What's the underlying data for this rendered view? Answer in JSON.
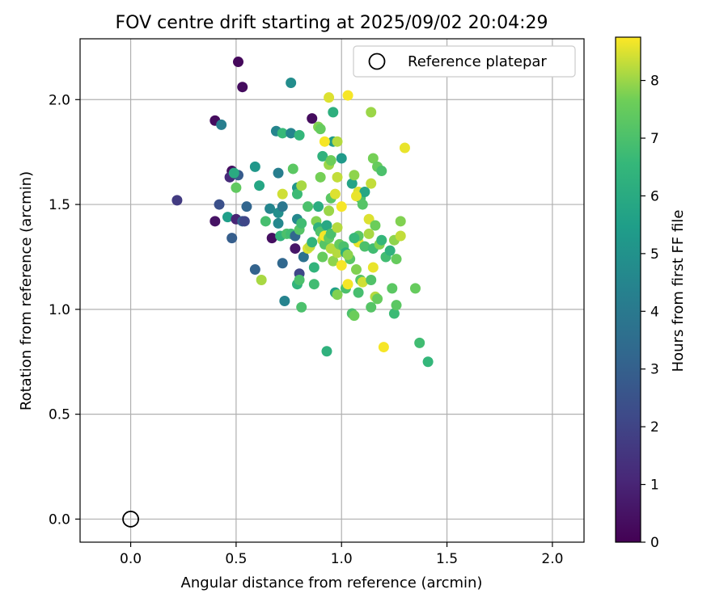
{
  "chart_data": {
    "type": "scatter",
    "title": "FOV centre drift starting at 2025/09/02 20:04:29",
    "xlabel": "Angular distance from reference (arcmin)",
    "ylabel": "Rotation from reference (arcmin)",
    "xlim": [
      -0.24,
      2.15
    ],
    "ylim": [
      -0.11,
      2.29
    ],
    "xticks": [
      "0.0",
      "0.5",
      "1.0",
      "1.5",
      "2.0"
    ],
    "yticks": [
      "0.0",
      "0.5",
      "1.0",
      "1.5",
      "2.0"
    ],
    "grid": true,
    "legend": {
      "location": "top-right",
      "entries": [
        "Reference platepar"
      ]
    },
    "reference_point": {
      "x": 0.0,
      "y": 0.0
    },
    "colorbar": {
      "label": "Hours from first FF file",
      "range": [
        0,
        8.75
      ],
      "ticks": [
        "0",
        "1",
        "2",
        "3",
        "4",
        "5",
        "6",
        "7",
        "8"
      ],
      "colormap": "viridis"
    },
    "points": [
      [
        0.51,
        2.18,
        0.2
      ],
      [
        0.53,
        2.06,
        0.3
      ],
      [
        0.4,
        1.9,
        0.3
      ],
      [
        0.43,
        1.88,
        4.2
      ],
      [
        0.76,
        2.08,
        4.8
      ],
      [
        0.86,
        1.91,
        0.3
      ],
      [
        0.94,
        2.01,
        8.5
      ],
      [
        1.03,
        2.02,
        8.7
      ],
      [
        0.96,
        1.94,
        6.2
      ],
      [
        0.69,
        1.85,
        4.5
      ],
      [
        0.72,
        1.84,
        6.6
      ],
      [
        0.76,
        1.84,
        4.5
      ],
      [
        0.8,
        1.83,
        6.5
      ],
      [
        0.89,
        1.87,
        7.8
      ],
      [
        0.9,
        1.86,
        7.5
      ],
      [
        0.96,
        1.8,
        5.3
      ],
      [
        0.98,
        1.8,
        8.2
      ],
      [
        1.14,
        1.94,
        8.0
      ],
      [
        1.3,
        1.77,
        8.6
      ],
      [
        0.48,
        1.66,
        0.4
      ],
      [
        0.51,
        1.64,
        2.8
      ],
      [
        0.47,
        1.63,
        1.2
      ],
      [
        0.49,
        1.65,
        6.0
      ],
      [
        0.59,
        1.68,
        5.2
      ],
      [
        0.7,
        1.65,
        4.2
      ],
      [
        0.77,
        1.67,
        7.3
      ],
      [
        0.91,
        1.73,
        6.3
      ],
      [
        0.94,
        1.69,
        8.0
      ],
      [
        0.95,
        1.71,
        7.6
      ],
      [
        1.0,
        1.72,
        5.3
      ],
      [
        1.15,
        1.72,
        7.7
      ],
      [
        1.17,
        1.68,
        7.5
      ],
      [
        1.19,
        1.66,
        7.0
      ],
      [
        0.22,
        1.52,
        1.7
      ],
      [
        0.42,
        1.5,
        2.4
      ],
      [
        0.4,
        1.42,
        0.5
      ],
      [
        0.46,
        1.44,
        5.5
      ],
      [
        0.5,
        1.43,
        1.0
      ],
      [
        0.53,
        1.42,
        3.0
      ],
      [
        0.55,
        1.49,
        3.2
      ],
      [
        0.54,
        1.42,
        2.1
      ],
      [
        0.5,
        1.58,
        7.4
      ],
      [
        0.61,
        1.59,
        5.8
      ],
      [
        0.64,
        1.42,
        6.9
      ],
      [
        0.66,
        1.48,
        4.5
      ],
      [
        0.7,
        1.46,
        4.9
      ],
      [
        0.7,
        1.41,
        4.6
      ],
      [
        0.72,
        1.49,
        3.9
      ],
      [
        0.72,
        1.55,
        8.4
      ],
      [
        0.79,
        1.58,
        5.1
      ],
      [
        0.79,
        1.55,
        6.7
      ],
      [
        0.81,
        1.59,
        8.1
      ],
      [
        0.84,
        1.49,
        7.0
      ],
      [
        0.89,
        1.49,
        6.1
      ],
      [
        0.94,
        1.47,
        8.0
      ],
      [
        0.95,
        1.53,
        7.3
      ],
      [
        0.97,
        1.55,
        8.5
      ],
      [
        0.98,
        1.63,
        8.3
      ],
      [
        1.0,
        1.49,
        8.7
      ],
      [
        1.05,
        1.6,
        5.7
      ],
      [
        1.06,
        1.64,
        7.9
      ],
      [
        1.08,
        1.56,
        8.5
      ],
      [
        1.09,
        1.53,
        7.0
      ],
      [
        1.1,
        1.5,
        7.2
      ],
      [
        1.11,
        1.56,
        5.8
      ],
      [
        1.14,
        1.6,
        8.3
      ],
      [
        0.48,
        1.34,
        2.9
      ],
      [
        0.59,
        1.19,
        3.1
      ],
      [
        0.62,
        1.14,
        8.1
      ],
      [
        0.67,
        1.34,
        0.4
      ],
      [
        0.71,
        1.35,
        6.4
      ],
      [
        0.72,
        1.22,
        3.3
      ],
      [
        0.73,
        1.04,
        4.4
      ],
      [
        0.74,
        1.36,
        7.0
      ],
      [
        0.76,
        1.36,
        6.8
      ],
      [
        0.78,
        1.29,
        0.6
      ],
      [
        0.78,
        1.35,
        3.3
      ],
      [
        0.79,
        1.43,
        4.6
      ],
      [
        0.79,
        1.12,
        6.4
      ],
      [
        0.8,
        1.38,
        7.2
      ],
      [
        0.81,
        1.41,
        6.8
      ],
      [
        0.8,
        1.17,
        2.1
      ],
      [
        0.8,
        1.14,
        7.0
      ],
      [
        0.81,
        1.01,
        7.0
      ],
      [
        0.82,
        1.25,
        3.7
      ],
      [
        0.84,
        1.29,
        8.5
      ],
      [
        0.85,
        1.3,
        8.3
      ],
      [
        0.86,
        1.32,
        6.4
      ],
      [
        0.87,
        1.2,
        6.4
      ],
      [
        0.87,
        1.12,
        6.8
      ],
      [
        0.88,
        1.42,
        7.8
      ],
      [
        0.89,
        1.39,
        6.3
      ],
      [
        0.9,
        1.37,
        7.1
      ],
      [
        0.91,
        1.33,
        8.3
      ],
      [
        0.91,
        1.25,
        7.5
      ],
      [
        0.92,
        1.31,
        7.2
      ],
      [
        0.92,
        1.35,
        8.7
      ],
      [
        0.93,
        1.4,
        5.9
      ],
      [
        0.94,
        1.34,
        7.4
      ],
      [
        0.95,
        1.29,
        8.2
      ],
      [
        0.95,
        1.36,
        7.0
      ],
      [
        0.96,
        1.23,
        7.9
      ],
      [
        0.97,
        1.08,
        5.6
      ],
      [
        0.98,
        1.07,
        7.8
      ],
      [
        0.98,
        1.27,
        8.2
      ],
      [
        0.99,
        1.31,
        7.5
      ],
      [
        1.0,
        1.21,
        8.7
      ],
      [
        1.01,
        1.3,
        7.0
      ],
      [
        1.02,
        1.27,
        6.2
      ],
      [
        1.02,
        1.1,
        7.0
      ],
      [
        1.03,
        1.12,
        8.7
      ],
      [
        1.04,
        1.24,
        7.3
      ],
      [
        1.05,
        0.98,
        7.0
      ],
      [
        1.06,
        0.97,
        7.6
      ],
      [
        1.07,
        1.19,
        7.8
      ],
      [
        1.08,
        1.08,
        6.9
      ],
      [
        1.08,
        1.32,
        8.6
      ],
      [
        1.08,
        1.35,
        7.3
      ],
      [
        1.09,
        1.14,
        7.2
      ],
      [
        1.1,
        1.13,
        8.4
      ],
      [
        1.11,
        1.3,
        7.0
      ],
      [
        1.13,
        1.43,
        8.5
      ],
      [
        1.13,
        1.36,
        8.1
      ],
      [
        1.14,
        1.14,
        7.1
      ],
      [
        1.14,
        1.01,
        7.2
      ],
      [
        1.15,
        1.2,
        8.6
      ],
      [
        1.15,
        1.29,
        6.8
      ],
      [
        1.16,
        1.4,
        7.6
      ],
      [
        1.16,
        1.06,
        8.2
      ],
      [
        1.17,
        1.05,
        7.5
      ],
      [
        1.18,
        1.31,
        7.8
      ],
      [
        1.19,
        1.33,
        6.5
      ],
      [
        1.2,
        0.82,
        8.7
      ],
      [
        1.21,
        1.25,
        6.8
      ],
      [
        1.23,
        1.28,
        6.3
      ],
      [
        1.24,
        1.1,
        7.3
      ],
      [
        1.25,
        0.98,
        6.7
      ],
      [
        1.25,
        1.33,
        7.9
      ],
      [
        1.26,
        1.02,
        7.3
      ],
      [
        1.26,
        1.24,
        7.5
      ],
      [
        1.28,
        1.35,
        8.3
      ],
      [
        1.28,
        1.42,
        7.8
      ],
      [
        0.93,
        0.8,
        6.3
      ],
      [
        1.37,
        0.84,
        6.8
      ],
      [
        1.35,
        1.1,
        7.5
      ],
      [
        1.41,
        0.75,
        6.5
      ],
      [
        0.9,
        1.63,
        7.7
      ],
      [
        1.07,
        1.54,
        8.6
      ],
      [
        1.03,
        1.26,
        7.9
      ],
      [
        0.98,
        1.39,
        8.2
      ],
      [
        0.92,
        1.8,
        8.7
      ],
      [
        1.06,
        1.34,
        6.6
      ]
    ]
  }
}
